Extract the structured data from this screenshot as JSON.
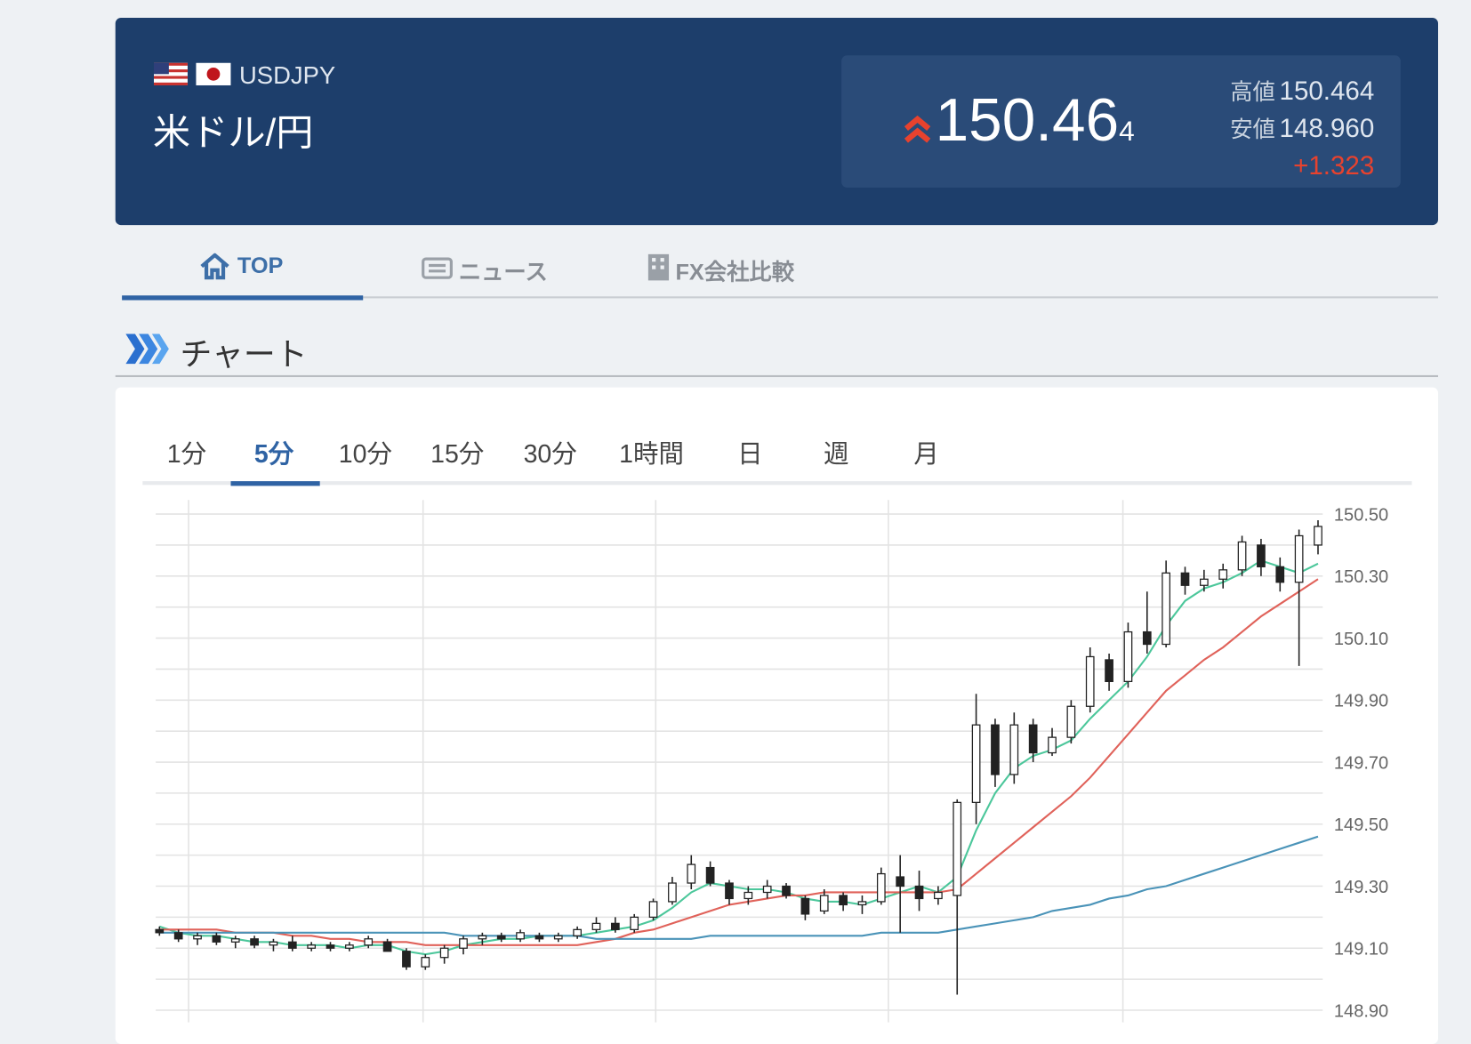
{
  "header": {
    "symbol": "USDJPY",
    "name": "米ドル/円",
    "price_main": "150.46",
    "price_pip": "4",
    "high_label": "高値",
    "high": "150.464",
    "low_label": "安値",
    "low": "148.960",
    "change": "+1.323"
  },
  "nav": [
    "TOP",
    "ニュース",
    "FX会社比較"
  ],
  "section_title": "チャート",
  "timeframes": [
    "1分",
    "5分",
    "10分",
    "15分",
    "30分",
    "1時間",
    "日",
    "週",
    "月"
  ],
  "chart_data": {
    "type": "candlestick",
    "open": [
      149.16,
      149.15,
      149.13,
      149.14,
      149.12,
      149.13,
      149.11,
      149.12,
      149.1,
      149.11,
      149.1,
      149.11,
      149.12,
      149.09,
      149.04,
      149.07,
      149.1,
      149.13,
      149.14,
      149.13,
      149.14,
      149.13,
      149.14,
      149.16,
      149.18,
      149.16,
      149.2,
      149.25,
      149.31,
      149.36,
      149.31,
      149.26,
      149.28,
      149.3,
      149.26,
      149.22,
      149.27,
      149.24,
      149.25,
      149.33,
      149.3,
      149.26,
      149.27,
      149.57,
      149.82,
      149.66,
      149.82,
      149.73,
      149.78,
      149.88,
      150.03,
      149.96,
      150.12,
      150.08,
      150.31,
      150.27,
      150.29,
      150.32,
      150.4,
      150.33,
      150.28,
      150.4
    ],
    "high": [
      149.17,
      149.16,
      149.15,
      149.15,
      149.14,
      149.14,
      149.13,
      149.14,
      149.12,
      149.12,
      149.12,
      149.14,
      149.13,
      149.1,
      149.08,
      149.11,
      149.14,
      149.15,
      149.15,
      149.16,
      149.15,
      149.15,
      149.17,
      149.2,
      149.2,
      149.21,
      149.26,
      149.33,
      149.4,
      149.38,
      149.32,
      149.3,
      149.32,
      149.31,
      149.27,
      149.29,
      149.28,
      149.27,
      149.36,
      149.4,
      149.35,
      149.3,
      149.58,
      149.92,
      149.84,
      149.86,
      149.84,
      149.81,
      149.9,
      150.07,
      150.05,
      150.15,
      150.25,
      150.35,
      150.33,
      150.32,
      150.34,
      150.43,
      150.42,
      150.36,
      150.45,
      150.48
    ],
    "low": [
      149.14,
      149.12,
      149.11,
      149.11,
      149.1,
      149.1,
      149.09,
      149.09,
      149.09,
      149.09,
      149.09,
      149.1,
      149.09,
      149.03,
      149.03,
      149.05,
      149.08,
      149.11,
      149.12,
      149.12,
      149.12,
      149.12,
      149.13,
      149.15,
      149.15,
      149.15,
      149.19,
      149.24,
      149.29,
      149.3,
      149.24,
      149.24,
      149.26,
      149.26,
      149.19,
      149.21,
      149.22,
      149.21,
      149.24,
      149.15,
      149.22,
      149.24,
      148.95,
      149.5,
      149.62,
      149.63,
      149.7,
      149.72,
      149.76,
      149.86,
      149.93,
      149.94,
      150.05,
      150.07,
      150.24,
      150.25,
      150.26,
      150.3,
      150.3,
      150.25,
      150.01,
      150.37
    ],
    "close": [
      149.15,
      149.13,
      149.14,
      149.12,
      149.13,
      149.11,
      149.12,
      149.1,
      149.11,
      149.1,
      149.11,
      149.13,
      149.09,
      149.04,
      149.07,
      149.1,
      149.13,
      149.14,
      149.13,
      149.15,
      149.13,
      149.14,
      149.16,
      149.18,
      149.16,
      149.2,
      149.25,
      149.31,
      149.37,
      149.31,
      149.26,
      149.28,
      149.3,
      149.27,
      149.21,
      149.27,
      149.24,
      149.25,
      149.34,
      149.3,
      149.26,
      149.28,
      149.57,
      149.82,
      149.66,
      149.82,
      149.73,
      149.78,
      149.88,
      150.04,
      149.96,
      150.12,
      150.08,
      150.31,
      150.27,
      150.29,
      150.32,
      150.41,
      150.33,
      150.28,
      150.43,
      150.46
    ],
    "up_color": "#ffffff",
    "down_color": "#222222",
    "wick_color": "#222222",
    "moving_averages": [
      {
        "color": "#4cc79b",
        "values": [
          149.17,
          149.15,
          149.14,
          149.14,
          149.13,
          149.12,
          149.12,
          149.11,
          149.11,
          149.11,
          149.1,
          149.11,
          149.11,
          149.09,
          149.08,
          149.09,
          149.11,
          149.12,
          149.13,
          149.13,
          149.14,
          149.14,
          149.14,
          149.15,
          149.16,
          149.17,
          149.19,
          149.23,
          149.28,
          149.31,
          149.3,
          149.29,
          149.29,
          149.28,
          149.26,
          149.25,
          149.25,
          149.24,
          149.26,
          149.28,
          149.3,
          149.28,
          149.33,
          149.48,
          149.6,
          149.68,
          149.72,
          149.74,
          149.77,
          149.84,
          149.9,
          149.96,
          150.04,
          150.14,
          150.22,
          150.26,
          150.28,
          150.31,
          150.35,
          150.33,
          150.31,
          150.34
        ]
      },
      {
        "color": "#e0625a",
        "values": [
          149.16,
          149.16,
          149.16,
          149.16,
          149.15,
          149.15,
          149.15,
          149.14,
          149.14,
          149.13,
          149.13,
          149.12,
          149.12,
          149.12,
          149.11,
          149.11,
          149.11,
          149.11,
          149.11,
          149.11,
          149.11,
          149.11,
          149.11,
          149.12,
          149.13,
          149.15,
          149.16,
          149.18,
          149.2,
          149.22,
          149.24,
          149.25,
          149.26,
          149.27,
          149.27,
          149.28,
          149.28,
          149.28,
          149.28,
          149.28,
          149.28,
          149.28,
          149.29,
          149.34,
          149.39,
          149.44,
          149.49,
          149.54,
          149.59,
          149.65,
          149.72,
          149.79,
          149.86,
          149.93,
          149.98,
          150.03,
          150.07,
          150.12,
          150.17,
          150.21,
          150.25,
          150.29
        ]
      },
      {
        "color": "#4a93b8",
        "values": [
          149.15,
          149.15,
          149.15,
          149.15,
          149.15,
          149.15,
          149.15,
          149.15,
          149.15,
          149.15,
          149.15,
          149.15,
          149.15,
          149.15,
          149.15,
          149.15,
          149.14,
          149.14,
          149.14,
          149.14,
          149.14,
          149.14,
          149.14,
          149.13,
          149.13,
          149.13,
          149.13,
          149.13,
          149.13,
          149.14,
          149.14,
          149.14,
          149.14,
          149.14,
          149.14,
          149.14,
          149.14,
          149.14,
          149.15,
          149.15,
          149.15,
          149.15,
          149.16,
          149.17,
          149.18,
          149.19,
          149.2,
          149.22,
          149.23,
          149.24,
          149.26,
          149.27,
          149.29,
          149.3,
          149.32,
          149.34,
          149.36,
          149.38,
          149.4,
          149.42,
          149.44,
          149.46
        ]
      }
    ],
    "ylim": [
      148.86,
      150.54
    ],
    "yticks": [
      {
        "value": 148.9,
        "label": "148.90"
      },
      {
        "value": 149.1,
        "label": "149.10"
      },
      {
        "value": 149.3,
        "label": "149.30"
      },
      {
        "value": 149.5,
        "label": "149.50"
      },
      {
        "value": 149.7,
        "label": "149.70"
      },
      {
        "value": 149.9,
        "label": "149.90"
      },
      {
        "value": 150.1,
        "label": "150.10"
      },
      {
        "value": 150.3,
        "label": "150.30"
      },
      {
        "value": 150.5,
        "label": "150.50"
      }
    ],
    "y_minor_ticks": [
      149.0,
      149.2,
      149.4,
      149.6,
      149.8,
      150.0,
      150.2,
      150.4
    ],
    "grid": true
  }
}
